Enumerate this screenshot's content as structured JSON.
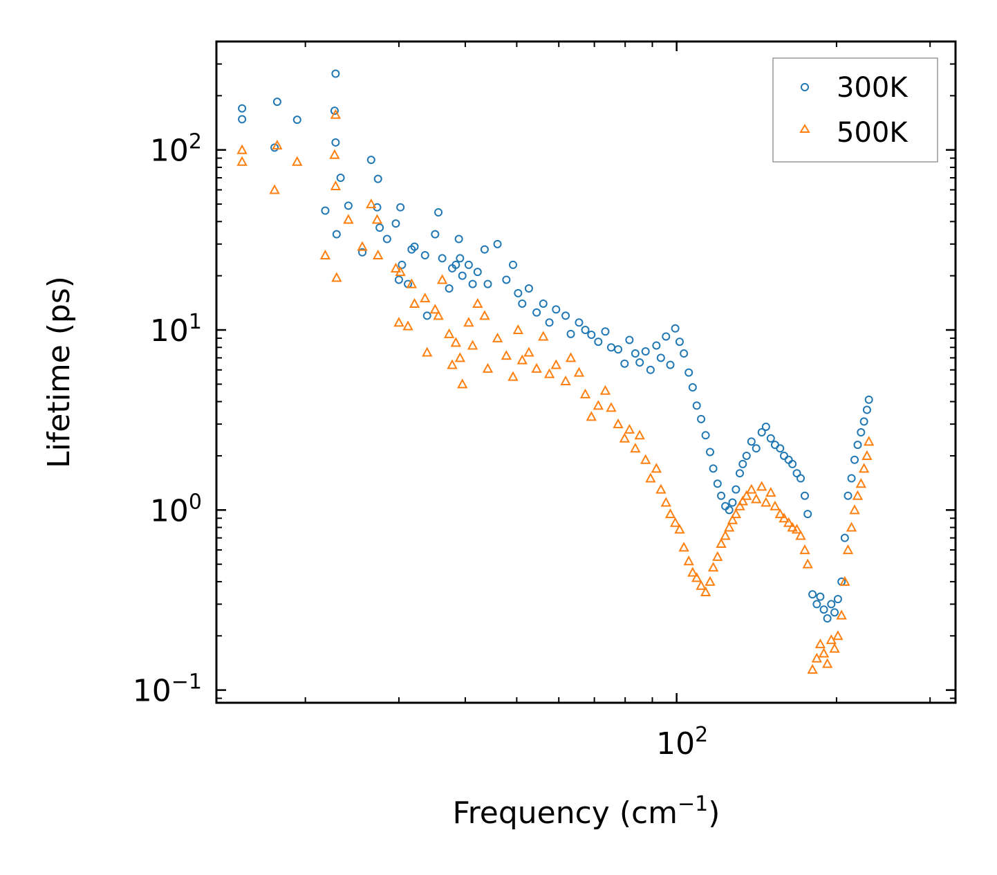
{
  "chart_data": {
    "type": "scatter",
    "title": "",
    "xlabel": "Frequency (cm",
    "xlabel_sup": "−1",
    "xlabel_suffix": ")",
    "ylabel": "Lifetime (ps)",
    "xscale": "log",
    "yscale": "log",
    "xlim": [
      13.6,
      335
    ],
    "ylim": [
      0.085,
      400
    ],
    "x_tick_labels": [
      {
        "value": 100,
        "base": "10",
        "exp": "2"
      }
    ],
    "y_tick_labels": [
      {
        "value": 100,
        "base": "10",
        "exp": "2"
      },
      {
        "value": 10,
        "base": "10",
        "exp": "1"
      },
      {
        "value": 1,
        "base": "10",
        "exp": "0"
      },
      {
        "value": 0.1,
        "base": "10",
        "exp": "−1"
      }
    ],
    "legend": {
      "position": "top-right",
      "entries": [
        {
          "label": "300K",
          "marker": "circle",
          "color": "#1f77b4"
        },
        {
          "label": "500K",
          "marker": "triangle",
          "color": "#ff7f0e"
        }
      ]
    },
    "series": [
      {
        "name": "300K",
        "color": "#1f77b4",
        "marker": "circle",
        "points": [
          [
            15.2,
            170
          ],
          [
            15.2,
            148
          ],
          [
            17.5,
            103
          ],
          [
            17.7,
            185
          ],
          [
            19.3,
            147
          ],
          [
            21.8,
            46
          ],
          [
            22.8,
            265
          ],
          [
            22.7,
            165
          ],
          [
            22.8,
            110
          ],
          [
            22.9,
            34
          ],
          [
            23.3,
            70
          ],
          [
            24.1,
            49
          ],
          [
            25.6,
            27
          ],
          [
            26.6,
            88
          ],
          [
            27.4,
            69
          ],
          [
            27.3,
            48
          ],
          [
            27.6,
            37
          ],
          [
            28.5,
            32
          ],
          [
            29.6,
            39
          ],
          [
            30.2,
            48
          ],
          [
            30.4,
            23
          ],
          [
            30.0,
            19
          ],
          [
            31.2,
            18
          ],
          [
            31.7,
            28
          ],
          [
            32.1,
            29
          ],
          [
            33.6,
            26
          ],
          [
            33.9,
            12
          ],
          [
            35.1,
            34
          ],
          [
            35.6,
            45
          ],
          [
            36.2,
            25
          ],
          [
            37.3,
            17
          ],
          [
            37.8,
            22
          ],
          [
            38.4,
            23
          ],
          [
            38.9,
            32
          ],
          [
            39.1,
            25
          ],
          [
            39.5,
            20
          ],
          [
            40.6,
            23
          ],
          [
            41.3,
            18
          ],
          [
            42.2,
            21
          ],
          [
            43.5,
            28
          ],
          [
            44.1,
            18
          ],
          [
            46.0,
            30
          ],
          [
            47.8,
            19
          ],
          [
            49.2,
            23
          ],
          [
            50.3,
            16
          ],
          [
            51.2,
            14
          ],
          [
            52.7,
            17
          ],
          [
            54.5,
            12.5
          ],
          [
            56.1,
            14
          ],
          [
            57.6,
            11
          ],
          [
            59.3,
            13
          ],
          [
            61.8,
            12
          ],
          [
            63.2,
            9.5
          ],
          [
            65.5,
            11
          ],
          [
            67.3,
            10
          ],
          [
            69.1,
            9.4
          ],
          [
            71.2,
            8.6
          ],
          [
            73.4,
            9.8
          ],
          [
            75.3,
            8.0
          ],
          [
            77.6,
            7.8
          ],
          [
            79.8,
            6.5
          ],
          [
            81.5,
            8.8
          ],
          [
            83.6,
            7.4
          ],
          [
            85.2,
            6.6
          ],
          [
            87.4,
            7.6
          ],
          [
            89.3,
            6.0
          ],
          [
            91.6,
            8.2
          ],
          [
            93.4,
            7.0
          ],
          [
            95.5,
            9.2
          ],
          [
            97.3,
            6.4
          ],
          [
            99.4,
            10.2
          ],
          [
            101.3,
            8.6
          ],
          [
            103.2,
            7.4
          ],
          [
            105.4,
            5.8
          ],
          [
            107.2,
            4.8
          ],
          [
            109.1,
            3.8
          ],
          [
            111.2,
            3.2
          ],
          [
            113.4,
            2.6
          ],
          [
            115.6,
            2.1
          ],
          [
            117.2,
            1.7
          ],
          [
            119.4,
            1.4
          ],
          [
            121.3,
            1.2
          ],
          [
            123.5,
            1.05
          ],
          [
            125.6,
            1.0
          ],
          [
            127.4,
            1.1
          ],
          [
            129.3,
            1.3
          ],
          [
            131.5,
            1.6
          ],
          [
            133.2,
            1.8
          ],
          [
            135.4,
            2.0
          ],
          [
            138.3,
            2.4
          ],
          [
            141.2,
            2.2
          ],
          [
            144.6,
            2.7
          ],
          [
            147.3,
            2.9
          ],
          [
            150.4,
            2.5
          ],
          [
            153.2,
            2.3
          ],
          [
            156.6,
            2.2
          ],
          [
            159.3,
            2.0
          ],
          [
            162.5,
            1.9
          ],
          [
            165.2,
            1.8
          ],
          [
            168.4,
            1.6
          ],
          [
            171.2,
            1.5
          ],
          [
            174.3,
            1.2
          ],
          [
            176.5,
            0.95
          ],
          [
            180.2,
            0.34
          ],
          [
            183.6,
            0.3
          ],
          [
            186.4,
            0.33
          ],
          [
            189.3,
            0.28
          ],
          [
            192.2,
            0.25
          ],
          [
            195.5,
            0.3
          ],
          [
            198.3,
            0.27
          ],
          [
            201.2,
            0.32
          ],
          [
            204.4,
            0.4
          ],
          [
            207.3,
            0.7
          ],
          [
            210.2,
            1.2
          ],
          [
            213.4,
            1.5
          ],
          [
            216.3,
            1.9
          ],
          [
            219.2,
            2.3
          ],
          [
            222.4,
            2.7
          ],
          [
            225.3,
            3.1
          ],
          [
            228.2,
            3.6
          ],
          [
            230.1,
            4.1
          ]
        ]
      },
      {
        "name": "500K",
        "color": "#ff7f0e",
        "marker": "triangle",
        "points": [
          [
            15.2,
            100
          ],
          [
            15.2,
            86
          ],
          [
            17.5,
            60
          ],
          [
            17.7,
            106
          ],
          [
            19.3,
            86
          ],
          [
            21.8,
            26
          ],
          [
            22.8,
            157
          ],
          [
            22.7,
            94
          ],
          [
            22.8,
            63
          ],
          [
            22.9,
            19.5
          ],
          [
            24.1,
            41
          ],
          [
            25.6,
            29
          ],
          [
            26.6,
            50
          ],
          [
            27.3,
            41
          ],
          [
            27.4,
            26
          ],
          [
            29.6,
            22
          ],
          [
            30.2,
            21
          ],
          [
            30.0,
            11
          ],
          [
            31.2,
            10.5
          ],
          [
            31.7,
            18
          ],
          [
            32.1,
            14
          ],
          [
            33.6,
            15
          ],
          [
            33.9,
            7.5
          ],
          [
            35.1,
            13
          ],
          [
            35.6,
            12
          ],
          [
            36.2,
            19
          ],
          [
            37.3,
            9.5
          ],
          [
            37.8,
            6.4
          ],
          [
            38.4,
            8.5
          ],
          [
            39.1,
            7.0
          ],
          [
            39.5,
            5.0
          ],
          [
            40.6,
            11
          ],
          [
            41.3,
            8.2
          ],
          [
            42.2,
            14
          ],
          [
            43.5,
            12
          ],
          [
            44.1,
            6.1
          ],
          [
            46.0,
            9.0
          ],
          [
            47.8,
            7.2
          ],
          [
            49.2,
            5.5
          ],
          [
            50.3,
            10
          ],
          [
            51.2,
            6.8
          ],
          [
            52.7,
            7.5
          ],
          [
            54.5,
            6.1
          ],
          [
            56.1,
            9.2
          ],
          [
            57.6,
            5.7
          ],
          [
            59.3,
            6.4
          ],
          [
            61.8,
            5.2
          ],
          [
            63.2,
            7.0
          ],
          [
            65.5,
            5.8
          ],
          [
            67.3,
            4.4
          ],
          [
            69.1,
            3.3
          ],
          [
            71.2,
            3.8
          ],
          [
            73.4,
            4.6
          ],
          [
            75.3,
            3.7
          ],
          [
            77.6,
            3.0
          ],
          [
            79.8,
            2.5
          ],
          [
            81.5,
            2.8
          ],
          [
            83.6,
            2.2
          ],
          [
            85.2,
            2.6
          ],
          [
            87.4,
            1.9
          ],
          [
            89.3,
            1.5
          ],
          [
            91.6,
            1.7
          ],
          [
            93.4,
            1.3
          ],
          [
            95.5,
            1.1
          ],
          [
            97.3,
            0.95
          ],
          [
            99.4,
            0.85
          ],
          [
            101.3,
            0.78
          ],
          [
            103.2,
            0.62
          ],
          [
            105.4,
            0.52
          ],
          [
            107.2,
            0.45
          ],
          [
            109.1,
            0.42
          ],
          [
            111.2,
            0.38
          ],
          [
            113.4,
            0.35
          ],
          [
            115.6,
            0.4
          ],
          [
            117.2,
            0.48
          ],
          [
            119.4,
            0.55
          ],
          [
            121.3,
            0.65
          ],
          [
            123.5,
            0.72
          ],
          [
            125.6,
            0.8
          ],
          [
            127.4,
            0.88
          ],
          [
            129.3,
            0.95
          ],
          [
            131.5,
            1.05
          ],
          [
            133.2,
            1.12
          ],
          [
            135.4,
            1.2
          ],
          [
            138.3,
            1.3
          ],
          [
            141.2,
            1.15
          ],
          [
            144.6,
            1.35
          ],
          [
            147.3,
            1.1
          ],
          [
            150.4,
            1.25
          ],
          [
            153.2,
            1.05
          ],
          [
            156.6,
            0.95
          ],
          [
            159.3,
            0.9
          ],
          [
            162.5,
            0.85
          ],
          [
            165.2,
            0.8
          ],
          [
            168.4,
            0.78
          ],
          [
            171.2,
            0.72
          ],
          [
            174.3,
            0.6
          ],
          [
            176.5,
            0.5
          ],
          [
            180.2,
            0.13
          ],
          [
            183.6,
            0.15
          ],
          [
            186.4,
            0.18
          ],
          [
            189.3,
            0.16
          ],
          [
            192.2,
            0.14
          ],
          [
            195.5,
            0.19
          ],
          [
            198.3,
            0.17
          ],
          [
            201.2,
            0.2
          ],
          [
            204.4,
            0.26
          ],
          [
            207.3,
            0.4
          ],
          [
            210.2,
            0.6
          ],
          [
            213.4,
            0.8
          ],
          [
            216.3,
            1.0
          ],
          [
            219.2,
            1.2
          ],
          [
            222.4,
            1.4
          ],
          [
            225.3,
            1.7
          ],
          [
            228.2,
            2.0
          ],
          [
            230.1,
            2.4
          ]
        ]
      }
    ]
  }
}
